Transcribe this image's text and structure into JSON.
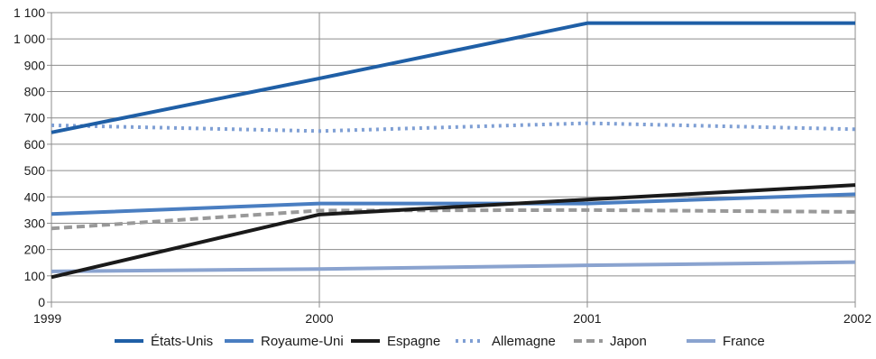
{
  "chart_data": {
    "type": "line",
    "title": "",
    "xlabel": "",
    "ylabel": "",
    "x": [
      "1999",
      "2000",
      "2001",
      "2002"
    ],
    "ylim": [
      0,
      1100
    ],
    "yticks": [
      0,
      100,
      200,
      300,
      400,
      500,
      600,
      700,
      800,
      900,
      1000,
      1100
    ],
    "ytick_labels": [
      "0",
      "100",
      "200",
      "300",
      "400",
      "500",
      "600",
      "700",
      "800",
      "900",
      "1 000",
      "1 100"
    ],
    "grid": true,
    "legend_position": "bottom",
    "series": [
      {
        "name": "États-Unis",
        "values": [
          645,
          850,
          1060,
          1060
        ],
        "color": "#1f5fa6",
        "style": "solid"
      },
      {
        "name": "Royaume-Uni",
        "values": [
          335,
          375,
          375,
          410
        ],
        "color": "#4a7ec1",
        "style": "solid"
      },
      {
        "name": "Espagne",
        "values": [
          95,
          333,
          390,
          445
        ],
        "color": "#1a1a1a",
        "style": "solid"
      },
      {
        "name": "Allemagne",
        "values": [
          672,
          650,
          680,
          657
        ],
        "color": "#7f9fd4",
        "style": "dotted"
      },
      {
        "name": "Japon",
        "values": [
          280,
          348,
          350,
          343
        ],
        "color": "#999999",
        "style": "dashed"
      },
      {
        "name": "France",
        "values": [
          117,
          126,
          140,
          152
        ],
        "color": "#8aa3cf",
        "style": "solid"
      }
    ]
  }
}
